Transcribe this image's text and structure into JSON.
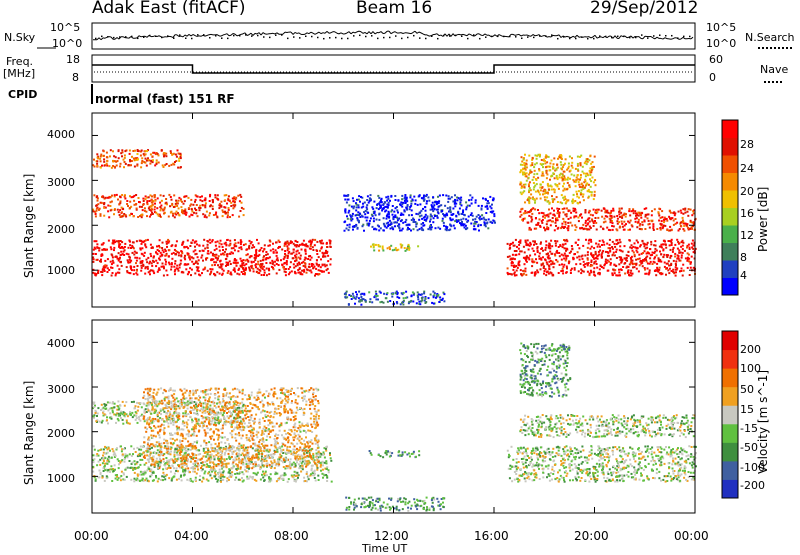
{
  "header": {
    "station": "Adak East (fitACF)",
    "beam": "Beam 16",
    "date": "29/Sep/2012"
  },
  "strip": {
    "nsky_label": "N.Sky",
    "nsearch_label": "N.Search",
    "nsky_ticks": [
      "10^5",
      "10^0"
    ],
    "nsearch_ticks": [
      "10^5",
      "10^0"
    ],
    "freq_label": "Freq.",
    "freq_unit": "[MHz]",
    "freq_ticks": [
      "18",
      "8"
    ],
    "nave_label": "Nave",
    "nave_ticks": [
      "60",
      "0"
    ],
    "cpid_label": "CPID",
    "cpid_text": "normal (fast) 151 RF"
  },
  "chart_data": [
    {
      "type": "heatmap",
      "name": "power",
      "ylabel": "Slant Range [km]",
      "yticks": [
        "4000",
        "3000",
        "2000",
        "1000"
      ],
      "ylim": [
        180,
        4500
      ],
      "xlim": [
        0,
        24
      ],
      "colorbar_label": "Power [dB]",
      "colorbar_ticks": [
        "28",
        "24",
        "20",
        "16",
        "12",
        "8",
        "4"
      ],
      "colors": [
        "#0000ff",
        "#2040c0",
        "#3f7f5a",
        "#4ab04a",
        "#a8d020",
        "#f0c000",
        "#f58a00",
        "#f05000",
        "#e01000",
        "#ff0000"
      ],
      "bands": [
        {
          "t0": 0,
          "t1": 9.5,
          "r0": 900,
          "r1": 1700,
          "level": 0.95
        },
        {
          "t0": 0,
          "t1": 6,
          "r0": 2200,
          "r1": 2700,
          "level": 0.8
        },
        {
          "t0": 0,
          "t1": 3.5,
          "r0": 3300,
          "r1": 3700,
          "level": 0.75
        },
        {
          "t0": 10,
          "t1": 16,
          "r0": 1900,
          "r1": 2700,
          "level": 0.05
        },
        {
          "t0": 11,
          "t1": 13,
          "r0": 1450,
          "r1": 1600,
          "level": 0.5
        },
        {
          "t0": 16.5,
          "t1": 24,
          "r0": 900,
          "r1": 1700,
          "level": 0.95
        },
        {
          "t0": 17,
          "t1": 24,
          "r0": 1900,
          "r1": 2400,
          "level": 0.85
        },
        {
          "t0": 17,
          "t1": 20,
          "r0": 2500,
          "r1": 3600,
          "level": 0.6
        },
        {
          "t0": 10,
          "t1": 14,
          "r0": 250,
          "r1": 550,
          "level": 0.15
        }
      ]
    },
    {
      "type": "heatmap",
      "name": "velocity",
      "ylabel": "Slant Range [km]",
      "yticks": [
        "4000",
        "3000",
        "2000",
        "1000"
      ],
      "ylim": [
        180,
        4500
      ],
      "xlim": [
        0,
        24
      ],
      "colorbar_label": "Velocity [m s^-1]",
      "colorbar_ticks": [
        "200",
        "100",
        "50",
        "15",
        "-15",
        "-50",
        "-100",
        "-200"
      ],
      "colors": [
        "#2030c0",
        "#4060a0",
        "#3f8f3f",
        "#60c040",
        "#c8c8c0",
        "#f0a020",
        "#f07000",
        "#f03010",
        "#e00000"
      ],
      "bands": [
        {
          "t0": 0,
          "t1": 9.5,
          "r0": 900,
          "r1": 1700,
          "level": 0.45
        },
        {
          "t0": 0,
          "t1": 6,
          "r0": 2200,
          "r1": 2700,
          "level": 0.45
        },
        {
          "t0": 2,
          "t1": 9,
          "r0": 1200,
          "r1": 3000,
          "level": 0.6
        },
        {
          "t0": 11,
          "t1": 13,
          "r0": 1450,
          "r1": 1600,
          "level": 0.3
        },
        {
          "t0": 16.5,
          "t1": 24,
          "r0": 900,
          "r1": 1700,
          "level": 0.45
        },
        {
          "t0": 17,
          "t1": 24,
          "r0": 1900,
          "r1": 2400,
          "level": 0.45
        },
        {
          "t0": 17,
          "t1": 19,
          "r0": 2800,
          "r1": 4000,
          "level": 0.3
        },
        {
          "t0": 10,
          "t1": 14,
          "r0": 250,
          "r1": 550,
          "level": 0.3
        }
      ]
    }
  ],
  "xaxis": {
    "label": "Time UT",
    "ticks": [
      "00:00",
      "04:00",
      "08:00",
      "12:00",
      "16:00",
      "20:00",
      "00:00"
    ]
  }
}
